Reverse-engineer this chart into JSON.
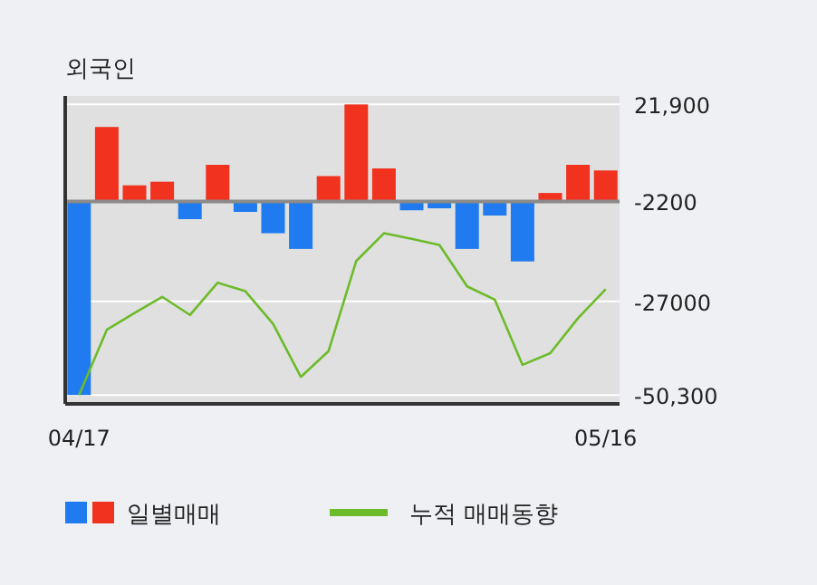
{
  "chart_data": {
    "type": "bar",
    "title": "외국인",
    "categories": [
      "04/17",
      null,
      null,
      null,
      null,
      null,
      null,
      null,
      null,
      null,
      null,
      null,
      null,
      null,
      null,
      null,
      null,
      null,
      null,
      "05/16"
    ],
    "series": [
      {
        "name": "일별매매",
        "base": [
          -2200,
          -2200,
          -2200,
          -2200,
          -2200,
          -2200,
          -2200,
          -2200,
          -2200,
          -2200,
          -2200,
          -2200,
          -2200,
          -2200,
          -2200,
          -2200,
          -2200,
          -2200,
          -2200,
          -2200
        ],
        "values": [
          -48100,
          18500,
          4000,
          4900,
          -4400,
          9100,
          -2600,
          -7900,
          -11800,
          6300,
          24100,
          8200,
          -2200,
          -1700,
          -11800,
          -3500,
          -14900,
          2100,
          9100,
          7700
        ],
        "colors": [
          "#1f7bef",
          "#f0321e",
          "#f0321e",
          "#f0321e",
          "#1f7bef",
          "#f0321e",
          "#1f7bef",
          "#1f7bef",
          "#1f7bef",
          "#f0321e",
          "#f0321e",
          "#f0321e",
          "#1f7bef",
          "#1f7bef",
          "#1f7bef",
          "#1f7bef",
          "#1f7bef",
          "#f0321e",
          "#f0321e",
          "#f0321e"
        ]
      },
      {
        "name": "누적 매매동향",
        "type": "line",
        "color": "#6cbb2a",
        "values": [
          -50300,
          -34100,
          -29900,
          -25900,
          -30400,
          -22400,
          -24500,
          -32600,
          -45800,
          -39400,
          -17000,
          -10100,
          -11500,
          -13000,
          -23300,
          -26600,
          -42800,
          -39900,
          -31200,
          -24000
        ]
      }
    ],
    "ylim": [
      -52500,
      24000
    ],
    "yticks": [
      {
        "value": 21900,
        "label": "21,900"
      },
      {
        "value": -2200,
        "label": "-2200"
      },
      {
        "value": -27000,
        "label": "-27000"
      },
      {
        "value": -50300,
        "label": "-50,300"
      }
    ],
    "ref_lines": [
      {
        "axis": "y",
        "value": -2200,
        "color": "#8a8a8a"
      }
    ],
    "grid": "y",
    "legend": "bottom"
  }
}
